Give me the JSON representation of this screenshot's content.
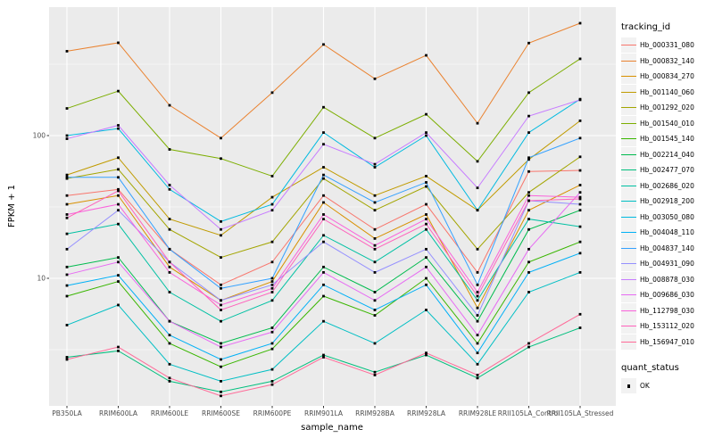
{
  "figure": {
    "background": "#FFFFFF",
    "panel_background": "#EBEBEB",
    "grid_color": "#FFFFFF",
    "axis_text_color": "#4D4D4D",
    "axis_title_color": "#000000",
    "marker_color": "#000000",
    "legend_key_background": "#F2F2F2"
  },
  "chart_data": {
    "type": "line",
    "title": "",
    "xlabel": "sample_name",
    "ylabel": "FPKM + 1",
    "y_scale": "log10",
    "y_ticks": [
      10,
      100
    ],
    "y_minor_ticks": [
      3.162,
      31.62,
      316.2
    ],
    "ylim": [
      1.3,
      800
    ],
    "grid": "on",
    "marker": "square",
    "legend_position": "right",
    "categories": [
      "PB350LA",
      "RRIM600LA",
      "RRIM600LE",
      "RRIM600SE",
      "RRIM600PE",
      "RRIM901LA",
      "RRIM928BA",
      "RRIM928LA",
      "RRIM928LE",
      "RRII105LA_Control",
      "RRII105LA_Stressed"
    ],
    "series": [
      {
        "name": "Hb_000331_080",
        "color": "#F8766D",
        "values": [
          38,
          42,
          16,
          9,
          13,
          38,
          22,
          33,
          11,
          56,
          57
        ]
      },
      {
        "name": "Hb_000832_140",
        "color": "#EA8331",
        "values": [
          390,
          447,
          163,
          96,
          200,
          435,
          250,
          365,
          122,
          445,
          613
        ]
      },
      {
        "name": "Hb_000834_270",
        "color": "#D89000",
        "values": [
          33,
          38,
          12,
          7,
          9.5,
          34,
          19,
          28,
          6.2,
          30,
          45
        ]
      },
      {
        "name": "Hb_001140_060",
        "color": "#C09B00",
        "values": [
          53,
          70,
          26,
          20,
          37,
          60,
          38,
          52,
          30,
          68,
          127
        ]
      },
      {
        "name": "Hb_001292_020",
        "color": "#A3A500",
        "values": [
          50,
          58,
          22,
          14,
          18,
          50,
          30,
          44,
          16,
          40,
          71
        ]
      },
      {
        "name": "Hb_001540_010",
        "color": "#7CAE00",
        "values": [
          155,
          205,
          80,
          69,
          52,
          158,
          96,
          141,
          66,
          200,
          345
        ]
      },
      {
        "name": "Hb_001545_140",
        "color": "#39B600",
        "values": [
          7.5,
          9.5,
          3.5,
          2.4,
          3.2,
          7.5,
          5.5,
          10,
          3.5,
          13,
          18
        ]
      },
      {
        "name": "Hb_002214_040",
        "color": "#00BB4E",
        "values": [
          12,
          14,
          5,
          3.5,
          4.5,
          12,
          8,
          14,
          5,
          22,
          30
        ]
      },
      {
        "name": "Hb_002477_070",
        "color": "#00BF7D",
        "values": [
          2.8,
          3.1,
          1.9,
          1.6,
          1.9,
          2.9,
          2.2,
          2.9,
          2.0,
          3.3,
          4.5
        ]
      },
      {
        "name": "Hb_002686_020",
        "color": "#00C1A3",
        "values": [
          20.5,
          24,
          8,
          5,
          7,
          20,
          13,
          22,
          7,
          26,
          23
        ]
      },
      {
        "name": "Hb_002918_200",
        "color": "#00BFC4",
        "values": [
          4.7,
          6.5,
          2.5,
          1.9,
          2.3,
          5,
          3.5,
          6,
          2.5,
          8,
          11
        ]
      },
      {
        "name": "Hb_003050_080",
        "color": "#00BAE0",
        "values": [
          100,
          112,
          42,
          25,
          33,
          105,
          60,
          100,
          30,
          105,
          180
        ]
      },
      {
        "name": "Hb_004048_110",
        "color": "#00B0F6",
        "values": [
          8.9,
          10.5,
          4,
          2.7,
          3.5,
          9,
          6,
          9,
          3,
          11,
          15
        ]
      },
      {
        "name": "Hb_004837_140",
        "color": "#35A2FF",
        "values": [
          51,
          51,
          16,
          8.5,
          10,
          53,
          34,
          47,
          9,
          70,
          96
        ]
      },
      {
        "name": "Hb_004931_090",
        "color": "#9590FF",
        "values": [
          16,
          30,
          13,
          7,
          9,
          18,
          11,
          16,
          5.5,
          35,
          33
        ]
      },
      {
        "name": "Hb_008878_030",
        "color": "#C77CFF",
        "values": [
          95,
          118,
          45,
          22,
          30,
          87,
          63,
          105,
          43,
          137,
          178
        ]
      },
      {
        "name": "Hb_009686_030",
        "color": "#E76BF3",
        "values": [
          10.6,
          13,
          5,
          3.3,
          4.2,
          11,
          7,
          12,
          4,
          16,
          40
        ]
      },
      {
        "name": "Hb_112798_030",
        "color": "#FA62DB",
        "values": [
          28,
          33,
          11,
          6.5,
          8.5,
          28,
          17,
          26,
          8,
          38,
          37
        ]
      },
      {
        "name": "Hb_153112_020",
        "color": "#FF62BC",
        "values": [
          26.5,
          41,
          13,
          6,
          8,
          26,
          16,
          24,
          7.5,
          35,
          36
        ]
      },
      {
        "name": "Hb_156947_010",
        "color": "#FF6A98",
        "values": [
          2.7,
          3.3,
          2.0,
          1.5,
          1.8,
          2.8,
          2.1,
          3.0,
          2.1,
          3.5,
          5.6
        ]
      }
    ],
    "legend": {
      "color_title": "tracking_id",
      "shape_title": "quant_status",
      "shape_items": [
        {
          "label": "OK",
          "marker": "black-square"
        }
      ]
    }
  }
}
